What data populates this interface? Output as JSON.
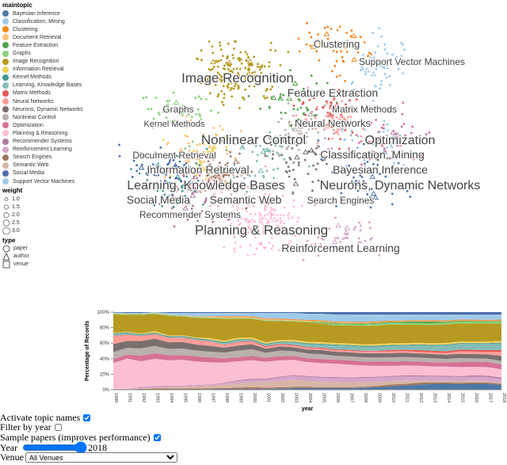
{
  "legend": {
    "topic_title": "maintopic",
    "topics": [
      {
        "name": "Bayesian Inference",
        "color": "#4c78a8"
      },
      {
        "name": "Classification, Mining",
        "color": "#9ecae9"
      },
      {
        "name": "Clustering",
        "color": "#f58518"
      },
      {
        "name": "Document Retrieval",
        "color": "#ffbf79"
      },
      {
        "name": "Feature Extraction",
        "color": "#54a24b"
      },
      {
        "name": "Graphs",
        "color": "#88d27a"
      },
      {
        "name": "Image Recognition",
        "color": "#b79a20"
      },
      {
        "name": "Information Retrieval",
        "color": "#f2cf5b"
      },
      {
        "name": "Kernel Methods",
        "color": "#439894"
      },
      {
        "name": "Learning, Knowledge Bases",
        "color": "#83bcb6"
      },
      {
        "name": "Matrix Methods",
        "color": "#e45756"
      },
      {
        "name": "Neural Networks",
        "color": "#ff9d98"
      },
      {
        "name": "Neurons, Dynamic Networks",
        "color": "#79706e"
      },
      {
        "name": "Nonlinear Control",
        "color": "#bab0ac"
      },
      {
        "name": "Optimization",
        "color": "#d67195"
      },
      {
        "name": "Planning & Reasoning",
        "color": "#fcbfd2"
      },
      {
        "name": "Recommender Systems",
        "color": "#b279a2"
      },
      {
        "name": "Reinforcement Learning",
        "color": "#d6a5c9"
      },
      {
        "name": "Search Engines",
        "color": "#9e765f"
      },
      {
        "name": "Semantic Web",
        "color": "#d8b5a5"
      },
      {
        "name": "Social Media",
        "color": "#4c6ea8"
      },
      {
        "name": "Support Vector Machines",
        "color": "#9ecae9"
      }
    ],
    "weight_title": "weight",
    "weights": [
      "1.0",
      "1.5",
      "2.0",
      "2.5",
      "3.0"
    ],
    "type_title": "type",
    "types": [
      {
        "name": "paper",
        "shape": "circle"
      },
      {
        "name": "author",
        "shape": "triangle"
      },
      {
        "name": "venue",
        "shape": "square"
      }
    ]
  },
  "scatter_labels": [
    "Clustering",
    "Support Vector Machines",
    "Image Recognition",
    "Feature Extraction",
    "Matrix Methods",
    "Neural Networks",
    "Graphs",
    "Nonlinear Control",
    "Optimization",
    "Document Retrieval",
    "Information Retrieval",
    "Learning, Knowledge Bases",
    "Neurons, Dynamic Networks",
    "Classification, Mining",
    "Social Media",
    "Semantic Web",
    "Search Engines",
    "Recommender Systems",
    "Bayesian Inference",
    "Planning & Reasoning",
    "Reinforcement Learning",
    "Kernel Methods"
  ],
  "chart_data": {
    "type": "area",
    "stacked": "normalize",
    "xlabel": "year",
    "ylabel": "Percentage of Records",
    "yticks": [
      "0%",
      "20%",
      "40%",
      "60%",
      "80%",
      "100%"
    ],
    "years": [
      1990,
      1991,
      1992,
      1993,
      1994,
      1995,
      1996,
      1997,
      1998,
      1999,
      2000,
      2001,
      2002,
      2003,
      2004,
      2005,
      2006,
      2007,
      2008,
      2009,
      2010,
      2011,
      2012,
      2013,
      2014,
      2015,
      2016,
      2017,
      2018
    ],
    "series": [
      {
        "name": "Bayesian Inference",
        "values": [
          0.5,
          0.5,
          0.5,
          0.5,
          0.5,
          0.5,
          0.5,
          0.8,
          1,
          1,
          1,
          1,
          1.5,
          2,
          2,
          2,
          2,
          2,
          2.5,
          3,
          4,
          5,
          6,
          7,
          7,
          7,
          7,
          7,
          5.5
        ]
      },
      {
        "name": "Search Engines",
        "values": [
          0,
          0,
          0.5,
          1,
          1,
          1,
          1,
          1,
          1,
          1.5,
          2,
          1.5,
          1.5,
          1.5,
          1.5,
          1,
          1,
          1,
          1,
          1.5,
          2,
          2,
          2.5,
          2,
          1.5,
          1.5,
          1.5,
          1.5,
          1.5
        ]
      },
      {
        "name": "Semantic Web",
        "values": [
          0.5,
          0.5,
          1,
          1.5,
          2,
          2,
          2.5,
          3,
          4,
          5,
          6,
          7,
          8,
          9,
          8,
          7,
          7,
          6,
          6,
          5,
          4,
          4,
          3,
          2,
          2,
          2,
          2,
          1.5,
          1
        ]
      },
      {
        "name": "Reinforcement Learning",
        "values": [
          0,
          0,
          1,
          1,
          1,
          1,
          1,
          1,
          2,
          3,
          3,
          3,
          4,
          5,
          5,
          5,
          5,
          5,
          5,
          5,
          5,
          5,
          5,
          5,
          5,
          5,
          5,
          5,
          5
        ]
      },
      {
        "name": "Recommender Systems",
        "values": [
          0,
          0,
          0.5,
          0.5,
          0.5,
          0.5,
          0.5,
          0.5,
          0.5,
          1,
          1,
          1,
          1,
          1,
          1,
          1,
          1,
          1,
          1,
          1,
          1,
          1,
          1,
          1,
          1,
          1,
          1.5,
          1.5,
          1.5
        ]
      },
      {
        "name": "Planning & Reasoning",
        "values": [
          33,
          40,
          32,
          34,
          31,
          32,
          28,
          27,
          24,
          23,
          22,
          21,
          20,
          19,
          18,
          17,
          17,
          16,
          14,
          13,
          12,
          12,
          12,
          11,
          11,
          11,
          10,
          10,
          10
        ]
      },
      {
        "name": "Optimization",
        "values": [
          5,
          5,
          7,
          7,
          6,
          6,
          6,
          6,
          5,
          5,
          5,
          5,
          5,
          5,
          5,
          5,
          5,
          5,
          5,
          5,
          5,
          5,
          5,
          5,
          5,
          6,
          6,
          6,
          6
        ]
      },
      {
        "name": "Nonlinear Control",
        "values": [
          9,
          9,
          9,
          9,
          8,
          8,
          7,
          7,
          7,
          8,
          8,
          6,
          7,
          6,
          6,
          6,
          5,
          5,
          5,
          5,
          5,
          5,
          5,
          5,
          4,
          5,
          4,
          4,
          4
        ]
      },
      {
        "name": "Neurons, Dynamic Networks",
        "values": [
          10,
          9,
          9,
          9,
          8,
          8,
          7,
          7,
          6,
          6,
          6,
          5,
          5,
          5,
          5,
          5,
          5,
          5,
          5,
          5,
          5,
          5,
          5,
          5,
          5,
          5,
          5,
          5,
          6
        ]
      },
      {
        "name": "Neural Networks",
        "values": [
          10,
          8,
          6,
          5,
          5,
          5,
          5,
          5,
          3,
          4,
          3,
          2,
          2,
          2,
          2,
          2,
          2,
          2,
          2,
          2,
          2,
          2,
          2,
          2,
          2,
          3,
          3,
          3,
          5
        ]
      },
      {
        "name": "Matrix Methods",
        "values": [
          0.5,
          0.5,
          0.5,
          0.5,
          0.5,
          0.5,
          0.5,
          0.5,
          0.5,
          0.5,
          1,
          1,
          1,
          1,
          1,
          1,
          1,
          1,
          1,
          1,
          1.5,
          1.5,
          2,
          2,
          2,
          2,
          2,
          2,
          2
        ]
      },
      {
        "name": "Learning, Knowledge Bases",
        "values": [
          2,
          2,
          1,
          1,
          1,
          1,
          1,
          1,
          2,
          2,
          1,
          2,
          2,
          3,
          4,
          4,
          5,
          5,
          5,
          5,
          5,
          5,
          6,
          6,
          7,
          7,
          7,
          7,
          8
        ]
      },
      {
        "name": "Kernel Methods",
        "values": [
          1,
          1,
          1,
          1,
          1,
          1,
          1,
          1,
          1,
          1,
          1,
          1,
          1,
          1,
          1,
          1,
          1,
          1,
          1,
          1,
          1,
          1,
          1,
          1,
          1,
          1,
          1,
          1,
          1
        ]
      },
      {
        "name": "Information Retrieval",
        "values": [
          1,
          1,
          1,
          2,
          1,
          1,
          1,
          2,
          2,
          2,
          2,
          2,
          2,
          2,
          2,
          2,
          2,
          2,
          2,
          2,
          2,
          2,
          2,
          2,
          2,
          2,
          2,
          2,
          2
        ]
      },
      {
        "name": "Image Recognition",
        "values": [
          23,
          22,
          23,
          21,
          24,
          23,
          23,
          24,
          26,
          23,
          22,
          26,
          23,
          23,
          25,
          23,
          22,
          22,
          22,
          22,
          22,
          22,
          22,
          22,
          22,
          22,
          21,
          21,
          21
        ]
      },
      {
        "name": "Graphs",
        "values": [
          1,
          1,
          1,
          1,
          1,
          1,
          1,
          1,
          1,
          1,
          1,
          1,
          1,
          1,
          1,
          1,
          2,
          1.5,
          2,
          2,
          2,
          2,
          2,
          2,
          2,
          2,
          2,
          2,
          2
        ]
      },
      {
        "name": "Feature Extraction",
        "values": [
          0,
          0,
          0,
          0,
          0,
          0,
          0,
          0,
          0,
          0,
          0,
          0,
          0,
          0,
          0,
          1,
          1,
          1,
          1,
          1,
          1,
          1.5,
          2,
          2,
          1,
          1,
          1,
          1,
          1
        ]
      },
      {
        "name": "Document Retrieval",
        "values": [
          0.5,
          0.5,
          0.5,
          0.5,
          0.5,
          0.5,
          0.5,
          1,
          1,
          1,
          1,
          1,
          1,
          1,
          1,
          1,
          1,
          1,
          1,
          1,
          0.5,
          0.5,
          0.5,
          0.5,
          0.5,
          0.5,
          0.5,
          0.5,
          0.5
        ]
      },
      {
        "name": "Clustering",
        "values": [
          0,
          0,
          0,
          0,
          0,
          0,
          0.5,
          0.5,
          1,
          1,
          1,
          1,
          1,
          1,
          1,
          1,
          1,
          1,
          1,
          1,
          1,
          1,
          1,
          1,
          1,
          1,
          1,
          1,
          1
        ]
      },
      {
        "name": "Classification, Mining",
        "values": [
          0,
          0,
          0,
          0,
          1,
          2,
          3,
          3,
          3,
          3,
          3,
          6,
          6,
          7,
          7,
          7,
          8,
          8,
          8,
          7,
          6,
          6,
          6,
          6,
          6,
          5,
          5,
          5,
          5
        ]
      },
      {
        "name": "Support Vector Machines",
        "values": [
          1,
          1,
          1,
          1,
          1,
          1,
          1,
          1,
          1,
          1,
          1,
          1,
          1,
          1,
          1,
          1,
          1,
          1,
          1,
          1,
          1,
          1,
          1,
          1,
          1,
          1,
          1,
          1,
          1
        ]
      },
      {
        "name": "Social Media",
        "values": [
          0.5,
          1,
          1,
          0,
          1,
          1,
          1,
          1,
          1,
          1,
          1,
          1,
          1,
          1,
          2,
          2,
          3,
          3,
          3,
          3,
          3,
          3,
          3,
          3,
          3,
          3,
          3,
          3,
          3
        ]
      }
    ]
  },
  "controls": {
    "topic_names_label": "Activate topic names",
    "topic_names_checked": true,
    "filter_year_label": "Filter by year",
    "filter_year_checked": false,
    "sample_label": "Sample papers (improves performance)",
    "sample_checked": true,
    "year_label": "Year",
    "year_value": "2018",
    "year_min": "1990",
    "year_max": "2018",
    "venue_label": "Venue",
    "venue_value": "All Venues"
  }
}
